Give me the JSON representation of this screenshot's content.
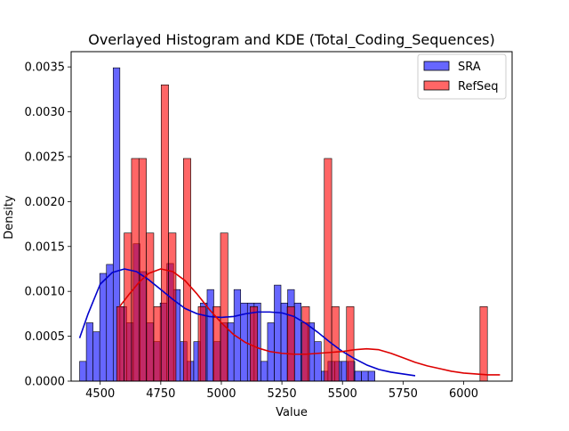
{
  "chart_data": {
    "type": "bar",
    "title": "Overlayed Histogram and KDE (Total_Coding_Sequences)",
    "xlabel": "Value",
    "ylabel": "Density",
    "xlim": [
      4380,
      6200
    ],
    "ylim": [
      0,
      0.00367
    ],
    "x_ticks": [
      4500,
      4750,
      5000,
      5250,
      5500,
      5750,
      6000
    ],
    "x_tick_labels": [
      "4500",
      "4750",
      "5000",
      "5250",
      "5500",
      "5750",
      "6000"
    ],
    "y_ticks": [
      0,
      0.0005,
      0.001,
      0.0015,
      0.002,
      0.0025,
      0.003,
      0.0035
    ],
    "y_tick_labels": [
      "0.0000",
      "0.0005",
      "0.0010",
      "0.0015",
      "0.0020",
      "0.0025",
      "0.0030",
      "0.0035"
    ],
    "grid": false,
    "legend_position": "top-right",
    "series": [
      {
        "name": "SRA",
        "color": "#0000ff",
        "kde_color": "#0000cc",
        "bin_start": 4415,
        "bin_width": 27.7,
        "values": [
          0.00022,
          0.00065,
          0.00055,
          0.0012,
          0.0013,
          0.00349,
          0.00083,
          0.00065,
          0.00153,
          0.00122,
          0.00065,
          0.00044,
          0.00087,
          0.00131,
          0.00102,
          0.00044,
          0.00022,
          0.00044,
          0.00087,
          0.00102,
          0.00044,
          0.00065,
          0.00065,
          0.00102,
          0.00087,
          0.00087,
          0.00087,
          0.00022,
          0.00065,
          0.00107,
          0.00087,
          0.00102,
          0.00087,
          0.00065,
          0.00065,
          0.00044,
          0.00011,
          0.00022,
          0.00022,
          0.00022,
          0.00022,
          0.00011,
          0.00011,
          0.00011
        ],
        "kde": {
          "x": [
            4415,
            4450,
            4500,
            4550,
            4600,
            4650,
            4700,
            4750,
            4800,
            4850,
            4900,
            4950,
            5000,
            5050,
            5100,
            5150,
            5200,
            5250,
            5300,
            5350,
            5400,
            5450,
            5500,
            5550,
            5600,
            5650,
            5700,
            5750,
            5800
          ],
          "y": [
            0.00048,
            0.00075,
            0.00108,
            0.00121,
            0.00125,
            0.00122,
            0.00113,
            0.00102,
            0.00091,
            0.00081,
            0.00075,
            0.00072,
            0.00071,
            0.00072,
            0.00075,
            0.00077,
            0.00077,
            0.00076,
            0.00072,
            0.00064,
            0.00054,
            0.00043,
            0.00033,
            0.00025,
            0.00018,
            0.00013,
            0.0001,
            8e-05,
            6e-05
          ]
        }
      },
      {
        "name": "RefSeq",
        "color": "#ff0000",
        "kde_color": "#dd0000",
        "bin_start": 4568,
        "bin_width": 30.6,
        "values": [
          0.00083,
          0.00165,
          0.00248,
          0.00248,
          0.00165,
          0.00083,
          0.0033,
          0.00165,
          0.0,
          0.00248,
          0.0,
          0.00083,
          0.0,
          0.00083,
          0.00165,
          0.0,
          0.0,
          0.0,
          0.00083,
          0.0,
          0.0,
          0.0,
          0.0,
          0.00083,
          0.0,
          0.00083,
          0.0,
          0.0,
          0.00248,
          0.00083,
          0.0,
          0.00083,
          0.0,
          0.0,
          0.0,
          0.0,
          0.0,
          0.0,
          0.0,
          0.0,
          0.0,
          0.0,
          0.0,
          0.0,
          0.0,
          0.0,
          0.0,
          0.0,
          0.0,
          0.00083
        ],
        "kde": {
          "x": [
            4580,
            4620,
            4660,
            4700,
            4750,
            4800,
            4850,
            4900,
            4950,
            5000,
            5050,
            5100,
            5150,
            5200,
            5250,
            5300,
            5350,
            5400,
            5450,
            5500,
            5550,
            5600,
            5650,
            5700,
            5750,
            5800,
            5850,
            5900,
            5950,
            6000,
            6050,
            6100,
            6150
          ],
          "y": [
            0.00083,
            0.00097,
            0.0011,
            0.0012,
            0.00125,
            0.00122,
            0.00112,
            0.00097,
            0.0008,
            0.00065,
            0.00052,
            0.00043,
            0.00037,
            0.00033,
            0.00031,
            0.0003,
            0.0003,
            0.00031,
            0.00032,
            0.00033,
            0.00035,
            0.00036,
            0.00035,
            0.00031,
            0.00026,
            0.00021,
            0.00017,
            0.00014,
            0.00011,
            9e-05,
            8e-05,
            7e-05,
            7e-05
          ]
        }
      }
    ]
  }
}
